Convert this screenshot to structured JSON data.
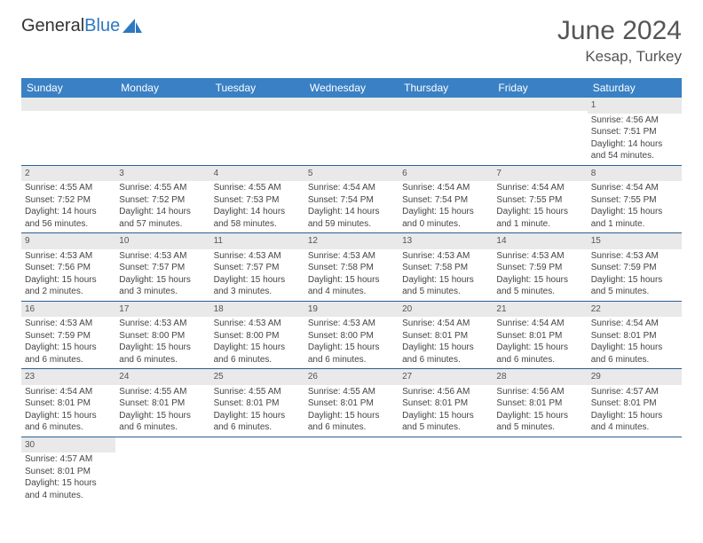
{
  "logo": {
    "text1": "General",
    "text2": "Blue"
  },
  "header": {
    "month": "June 2024",
    "location": "Kesap, Turkey"
  },
  "colors": {
    "header_bg": "#3a80c4",
    "header_text": "#ffffff",
    "daynum_bg": "#e9e9e9",
    "border": "#2d5f93",
    "logo_blue": "#2d78c0"
  },
  "weekdays": [
    "Sunday",
    "Monday",
    "Tuesday",
    "Wednesday",
    "Thursday",
    "Friday",
    "Saturday"
  ],
  "weeks": [
    [
      {
        "n": "",
        "sr": "",
        "ss": "",
        "dl1": "",
        "dl2": ""
      },
      {
        "n": "",
        "sr": "",
        "ss": "",
        "dl1": "",
        "dl2": ""
      },
      {
        "n": "",
        "sr": "",
        "ss": "",
        "dl1": "",
        "dl2": ""
      },
      {
        "n": "",
        "sr": "",
        "ss": "",
        "dl1": "",
        "dl2": ""
      },
      {
        "n": "",
        "sr": "",
        "ss": "",
        "dl1": "",
        "dl2": ""
      },
      {
        "n": "",
        "sr": "",
        "ss": "",
        "dl1": "",
        "dl2": ""
      },
      {
        "n": "1",
        "sr": "Sunrise: 4:56 AM",
        "ss": "Sunset: 7:51 PM",
        "dl1": "Daylight: 14 hours",
        "dl2": "and 54 minutes."
      }
    ],
    [
      {
        "n": "2",
        "sr": "Sunrise: 4:55 AM",
        "ss": "Sunset: 7:52 PM",
        "dl1": "Daylight: 14 hours",
        "dl2": "and 56 minutes."
      },
      {
        "n": "3",
        "sr": "Sunrise: 4:55 AM",
        "ss": "Sunset: 7:52 PM",
        "dl1": "Daylight: 14 hours",
        "dl2": "and 57 minutes."
      },
      {
        "n": "4",
        "sr": "Sunrise: 4:55 AM",
        "ss": "Sunset: 7:53 PM",
        "dl1": "Daylight: 14 hours",
        "dl2": "and 58 minutes."
      },
      {
        "n": "5",
        "sr": "Sunrise: 4:54 AM",
        "ss": "Sunset: 7:54 PM",
        "dl1": "Daylight: 14 hours",
        "dl2": "and 59 minutes."
      },
      {
        "n": "6",
        "sr": "Sunrise: 4:54 AM",
        "ss": "Sunset: 7:54 PM",
        "dl1": "Daylight: 15 hours",
        "dl2": "and 0 minutes."
      },
      {
        "n": "7",
        "sr": "Sunrise: 4:54 AM",
        "ss": "Sunset: 7:55 PM",
        "dl1": "Daylight: 15 hours",
        "dl2": "and 1 minute."
      },
      {
        "n": "8",
        "sr": "Sunrise: 4:54 AM",
        "ss": "Sunset: 7:55 PM",
        "dl1": "Daylight: 15 hours",
        "dl2": "and 1 minute."
      }
    ],
    [
      {
        "n": "9",
        "sr": "Sunrise: 4:53 AM",
        "ss": "Sunset: 7:56 PM",
        "dl1": "Daylight: 15 hours",
        "dl2": "and 2 minutes."
      },
      {
        "n": "10",
        "sr": "Sunrise: 4:53 AM",
        "ss": "Sunset: 7:57 PM",
        "dl1": "Daylight: 15 hours",
        "dl2": "and 3 minutes."
      },
      {
        "n": "11",
        "sr": "Sunrise: 4:53 AM",
        "ss": "Sunset: 7:57 PM",
        "dl1": "Daylight: 15 hours",
        "dl2": "and 3 minutes."
      },
      {
        "n": "12",
        "sr": "Sunrise: 4:53 AM",
        "ss": "Sunset: 7:58 PM",
        "dl1": "Daylight: 15 hours",
        "dl2": "and 4 minutes."
      },
      {
        "n": "13",
        "sr": "Sunrise: 4:53 AM",
        "ss": "Sunset: 7:58 PM",
        "dl1": "Daylight: 15 hours",
        "dl2": "and 5 minutes."
      },
      {
        "n": "14",
        "sr": "Sunrise: 4:53 AM",
        "ss": "Sunset: 7:59 PM",
        "dl1": "Daylight: 15 hours",
        "dl2": "and 5 minutes."
      },
      {
        "n": "15",
        "sr": "Sunrise: 4:53 AM",
        "ss": "Sunset: 7:59 PM",
        "dl1": "Daylight: 15 hours",
        "dl2": "and 5 minutes."
      }
    ],
    [
      {
        "n": "16",
        "sr": "Sunrise: 4:53 AM",
        "ss": "Sunset: 7:59 PM",
        "dl1": "Daylight: 15 hours",
        "dl2": "and 6 minutes."
      },
      {
        "n": "17",
        "sr": "Sunrise: 4:53 AM",
        "ss": "Sunset: 8:00 PM",
        "dl1": "Daylight: 15 hours",
        "dl2": "and 6 minutes."
      },
      {
        "n": "18",
        "sr": "Sunrise: 4:53 AM",
        "ss": "Sunset: 8:00 PM",
        "dl1": "Daylight: 15 hours",
        "dl2": "and 6 minutes."
      },
      {
        "n": "19",
        "sr": "Sunrise: 4:53 AM",
        "ss": "Sunset: 8:00 PM",
        "dl1": "Daylight: 15 hours",
        "dl2": "and 6 minutes."
      },
      {
        "n": "20",
        "sr": "Sunrise: 4:54 AM",
        "ss": "Sunset: 8:01 PM",
        "dl1": "Daylight: 15 hours",
        "dl2": "and 6 minutes."
      },
      {
        "n": "21",
        "sr": "Sunrise: 4:54 AM",
        "ss": "Sunset: 8:01 PM",
        "dl1": "Daylight: 15 hours",
        "dl2": "and 6 minutes."
      },
      {
        "n": "22",
        "sr": "Sunrise: 4:54 AM",
        "ss": "Sunset: 8:01 PM",
        "dl1": "Daylight: 15 hours",
        "dl2": "and 6 minutes."
      }
    ],
    [
      {
        "n": "23",
        "sr": "Sunrise: 4:54 AM",
        "ss": "Sunset: 8:01 PM",
        "dl1": "Daylight: 15 hours",
        "dl2": "and 6 minutes."
      },
      {
        "n": "24",
        "sr": "Sunrise: 4:55 AM",
        "ss": "Sunset: 8:01 PM",
        "dl1": "Daylight: 15 hours",
        "dl2": "and 6 minutes."
      },
      {
        "n": "25",
        "sr": "Sunrise: 4:55 AM",
        "ss": "Sunset: 8:01 PM",
        "dl1": "Daylight: 15 hours",
        "dl2": "and 6 minutes."
      },
      {
        "n": "26",
        "sr": "Sunrise: 4:55 AM",
        "ss": "Sunset: 8:01 PM",
        "dl1": "Daylight: 15 hours",
        "dl2": "and 6 minutes."
      },
      {
        "n": "27",
        "sr": "Sunrise: 4:56 AM",
        "ss": "Sunset: 8:01 PM",
        "dl1": "Daylight: 15 hours",
        "dl2": "and 5 minutes."
      },
      {
        "n": "28",
        "sr": "Sunrise: 4:56 AM",
        "ss": "Sunset: 8:01 PM",
        "dl1": "Daylight: 15 hours",
        "dl2": "and 5 minutes."
      },
      {
        "n": "29",
        "sr": "Sunrise: 4:57 AM",
        "ss": "Sunset: 8:01 PM",
        "dl1": "Daylight: 15 hours",
        "dl2": "and 4 minutes."
      }
    ],
    [
      {
        "n": "30",
        "sr": "Sunrise: 4:57 AM",
        "ss": "Sunset: 8:01 PM",
        "dl1": "Daylight: 15 hours",
        "dl2": "and 4 minutes."
      },
      {
        "n": "",
        "sr": "",
        "ss": "",
        "dl1": "",
        "dl2": ""
      },
      {
        "n": "",
        "sr": "",
        "ss": "",
        "dl1": "",
        "dl2": ""
      },
      {
        "n": "",
        "sr": "",
        "ss": "",
        "dl1": "",
        "dl2": ""
      },
      {
        "n": "",
        "sr": "",
        "ss": "",
        "dl1": "",
        "dl2": ""
      },
      {
        "n": "",
        "sr": "",
        "ss": "",
        "dl1": "",
        "dl2": ""
      },
      {
        "n": "",
        "sr": "",
        "ss": "",
        "dl1": "",
        "dl2": ""
      }
    ]
  ]
}
